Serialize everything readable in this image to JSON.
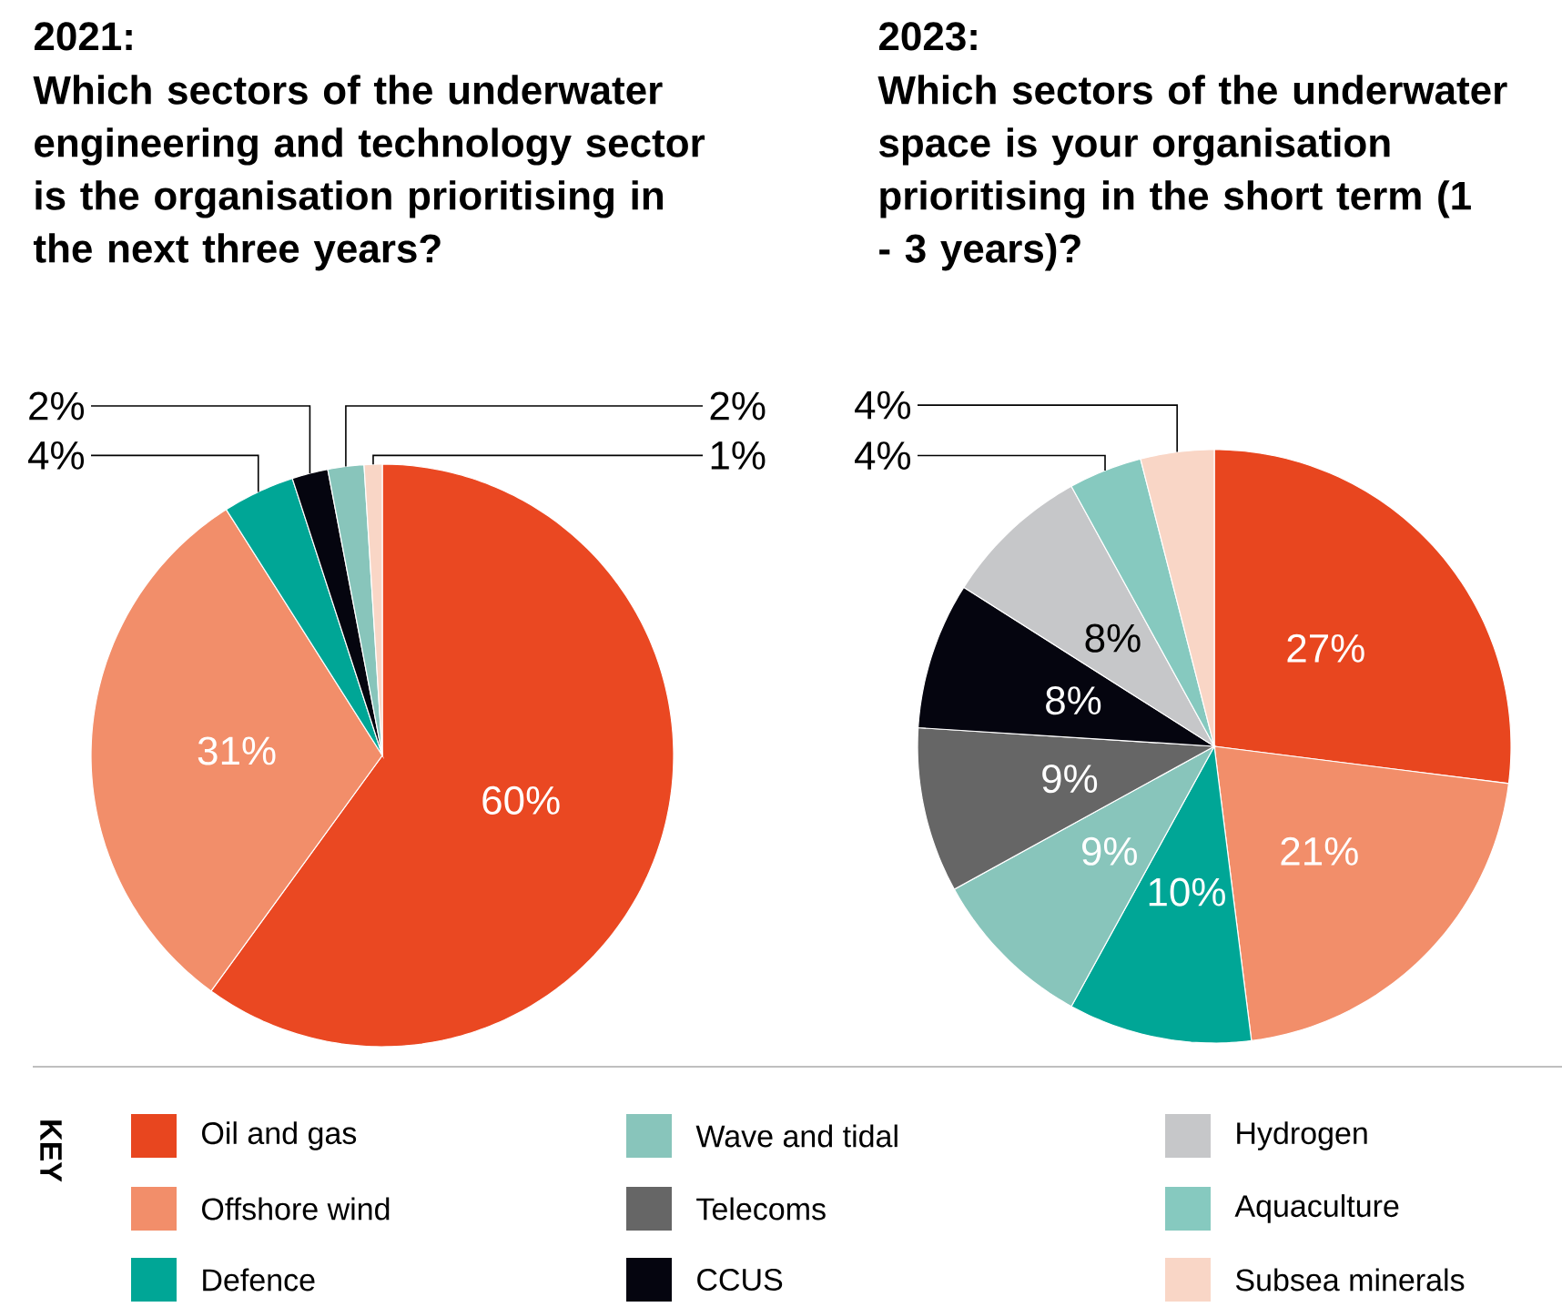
{
  "chart_data": [
    {
      "type": "pie",
      "title": "2021:",
      "subtitle": "Which sectors of the underwater engineering and technology sector is the organisation prioritising in the next three years?",
      "categories": [
        null,
        null,
        null,
        null,
        null,
        null
      ],
      "values": [
        60,
        31,
        4,
        2,
        2,
        1
      ],
      "colors": [
        "#ea4822",
        "#f28e6a",
        "#00a696",
        "#05050f",
        "#88c5bb",
        "#f9d6c6"
      ],
      "value_labels": [
        "60%",
        "31%",
        "4%",
        "2%",
        "2%",
        "1%"
      ]
    },
    {
      "type": "pie",
      "title": "2023:",
      "subtitle": "Which sectors of the underwater space is your organisation prioritising in the short term (1 - 3 years)?",
      "categories": [
        "Oil and gas",
        "Offshore wind",
        "Defence",
        "Wave and tidal",
        "Telecoms",
        "CCUS",
        "Hydrogen",
        "Aquaculture",
        "Subsea minerals"
      ],
      "values": [
        27,
        21,
        10,
        9,
        9,
        8,
        8,
        4,
        4
      ],
      "colors": [
        "#e8461f",
        "#f28e6a",
        "#00a696",
        "#88c5bb",
        "#666666",
        "#05050f",
        "#c6c7c9",
        "#86c9bf",
        "#f9d6c6"
      ],
      "value_labels": [
        "27%",
        "21%",
        "10%",
        "9%",
        "9%",
        "8%",
        "8%",
        "4%",
        "4%"
      ],
      "legend": "bottom",
      "legend_title": "KEY"
    }
  ]
}
